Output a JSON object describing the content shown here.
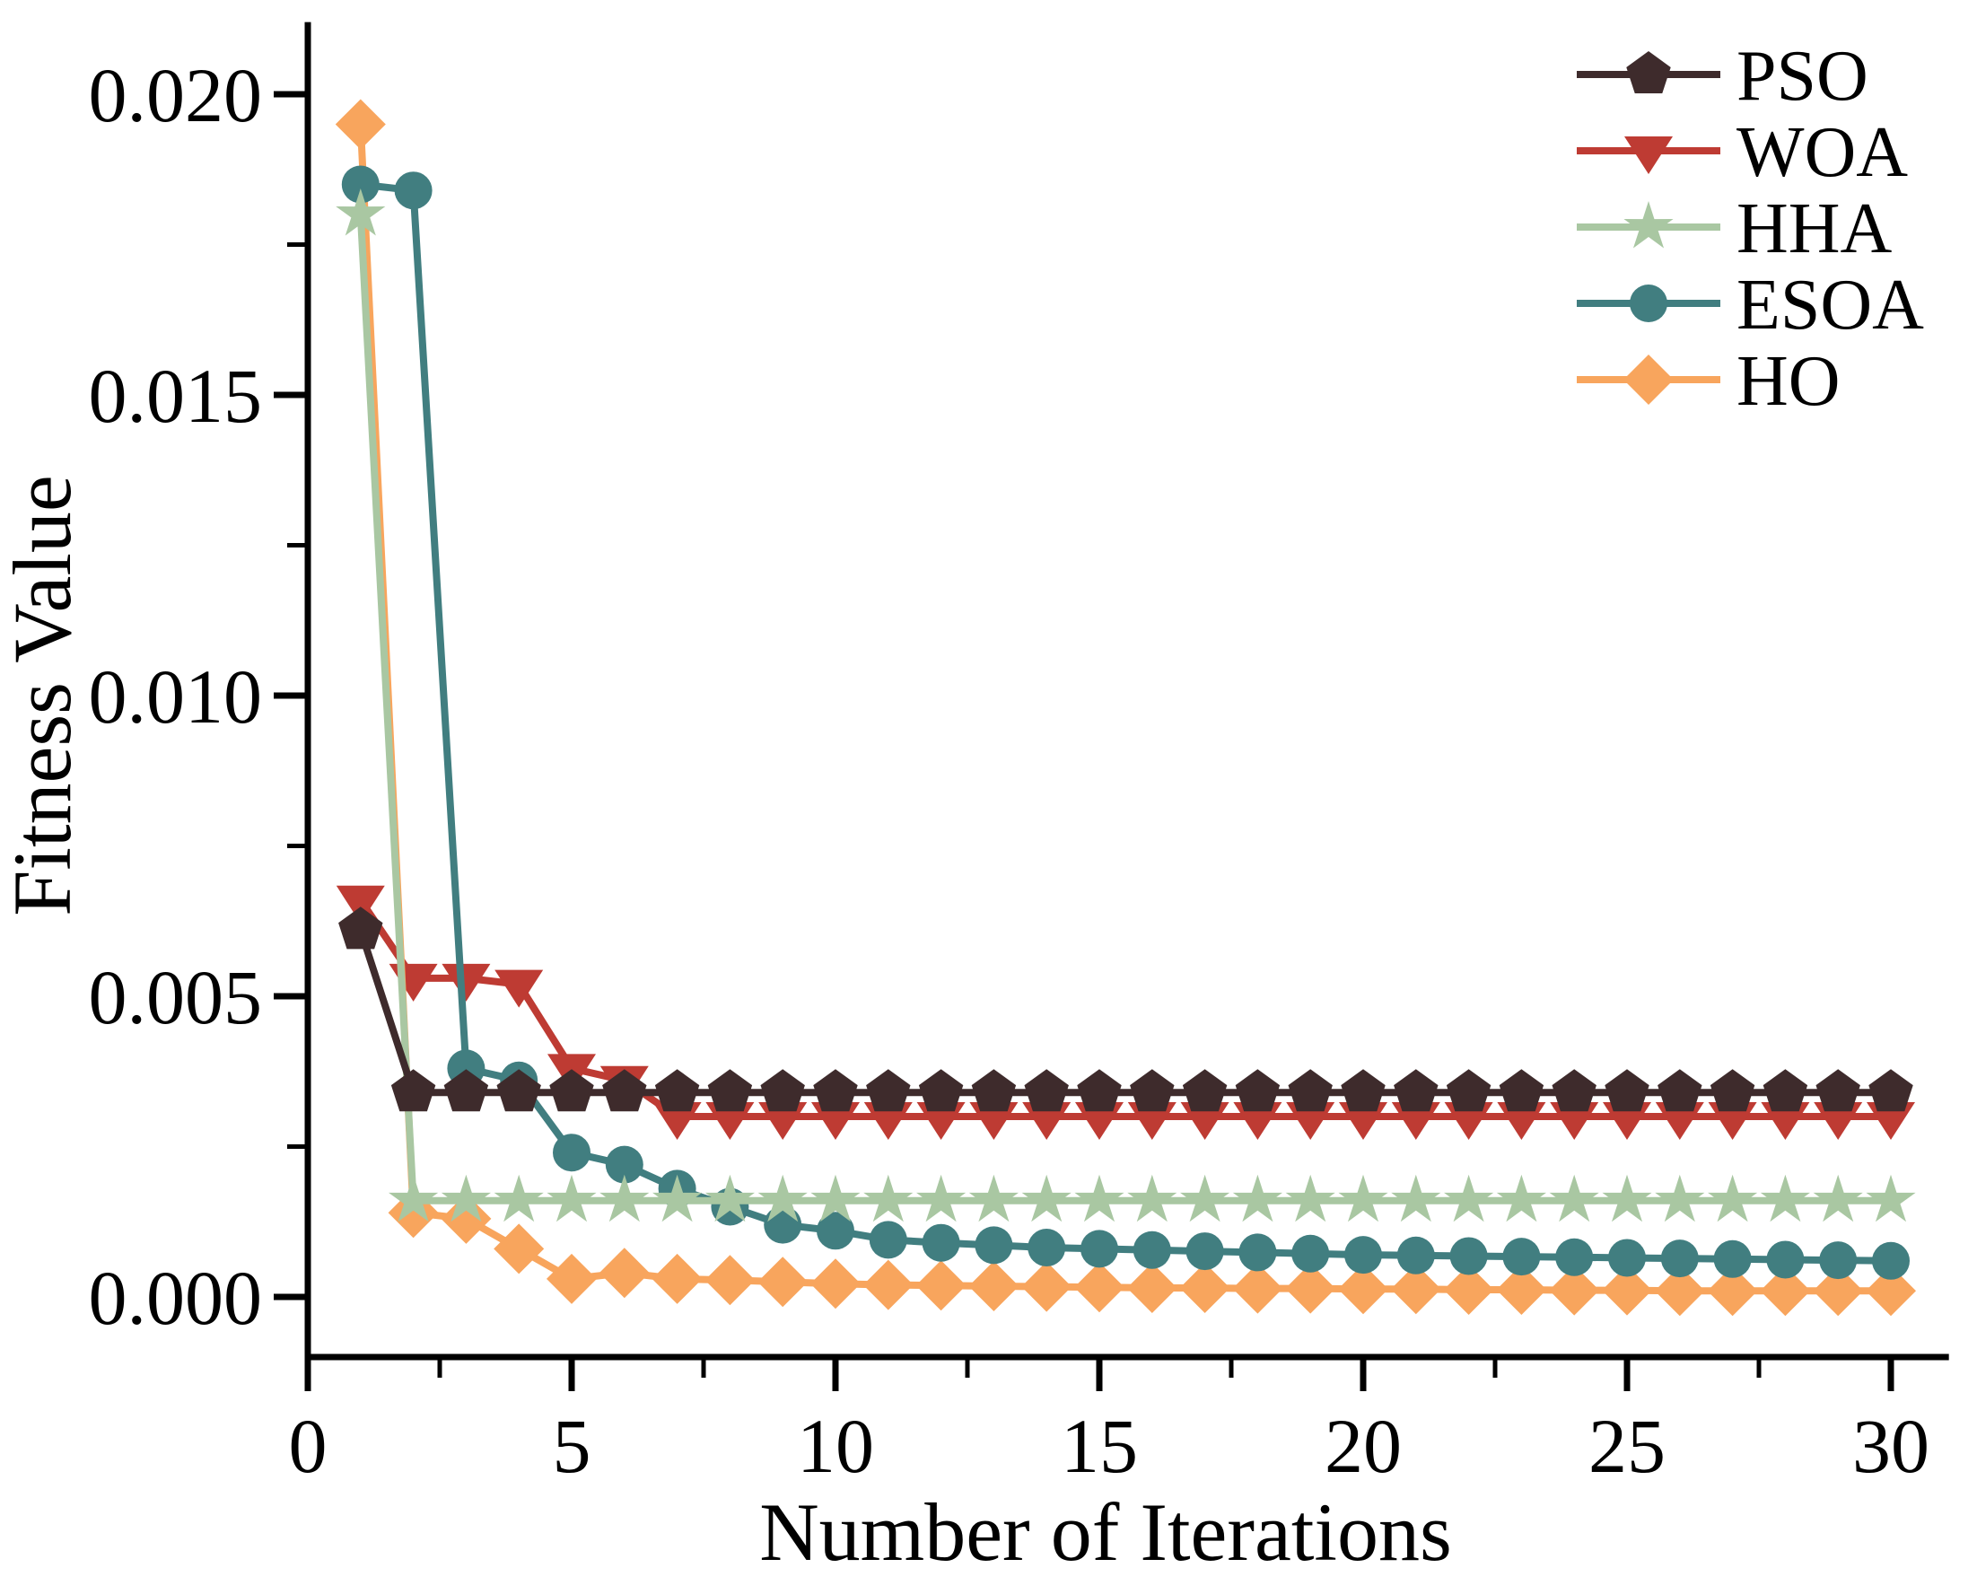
{
  "figure": {
    "background": "#ffffff",
    "axis_color": "#000000"
  },
  "chart_data": {
    "type": "line",
    "title": "",
    "xlabel": "Number of Iterations",
    "ylabel": "Fitness Value",
    "grid": false,
    "legend_position": "top-right",
    "xlim": [
      0,
      31.1
    ],
    "ylim": [
      -0.001,
      0.0212
    ],
    "xticks": [
      0,
      5,
      10,
      15,
      20,
      25,
      30
    ],
    "xticks_minor": [
      2.5,
      7.5,
      12.5,
      17.5,
      22.5,
      27.5
    ],
    "yticks": [
      0.0,
      0.005,
      0.01,
      0.015,
      0.02
    ],
    "yticks_minor": [
      0.0025,
      0.0075,
      0.0125,
      0.0175
    ],
    "ytick_decimals": 3,
    "x": [
      1,
      2,
      3,
      4,
      5,
      6,
      7,
      8,
      9,
      10,
      11,
      12,
      13,
      14,
      15,
      16,
      17,
      18,
      19,
      20,
      21,
      22,
      23,
      24,
      25,
      26,
      27,
      28,
      29,
      30
    ],
    "series": [
      {
        "name": "PSO",
        "color": "#3E2B2C",
        "marker": "pentagon",
        "values": [
          0.0061,
          0.0034,
          0.0034,
          0.0034,
          0.0034,
          0.0034,
          0.0034,
          0.0034,
          0.0034,
          0.0034,
          0.0034,
          0.0034,
          0.0034,
          0.0034,
          0.0034,
          0.0034,
          0.0034,
          0.0034,
          0.0034,
          0.0034,
          0.0034,
          0.0034,
          0.0034,
          0.0034,
          0.0034,
          0.0034,
          0.0034,
          0.0034,
          0.0034,
          0.0034
        ]
      },
      {
        "name": "WOA",
        "color": "#BE3B33",
        "marker": "triangle-down",
        "values": [
          0.0066,
          0.0053,
          0.0053,
          0.0052,
          0.0038,
          0.0036,
          0.003,
          0.003,
          0.003,
          0.003,
          0.003,
          0.003,
          0.003,
          0.003,
          0.003,
          0.003,
          0.003,
          0.003,
          0.003,
          0.003,
          0.003,
          0.003,
          0.003,
          0.003,
          0.003,
          0.003,
          0.003,
          0.003,
          0.003,
          0.003
        ]
      },
      {
        "name": "HHA",
        "color": "#A9C7A2",
        "marker": "star",
        "values": [
          0.018,
          0.0016,
          0.0016,
          0.0016,
          0.0016,
          0.0016,
          0.0016,
          0.0016,
          0.0016,
          0.0016,
          0.0016,
          0.0016,
          0.0016,
          0.0016,
          0.0016,
          0.0016,
          0.0016,
          0.0016,
          0.0016,
          0.0016,
          0.0016,
          0.0016,
          0.0016,
          0.0016,
          0.0016,
          0.0016,
          0.0016,
          0.0016,
          0.0016,
          0.0016
        ]
      },
      {
        "name": "ESOA",
        "color": "#417E80",
        "marker": "circle",
        "values": [
          0.0185,
          0.0184,
          0.0038,
          0.0036,
          0.0024,
          0.0022,
          0.0018,
          0.0015,
          0.0012,
          0.0011,
          0.00095,
          0.0009,
          0.00086,
          0.00082,
          0.0008,
          0.00078,
          0.00076,
          0.00074,
          0.00072,
          0.0007,
          0.00069,
          0.00068,
          0.00067,
          0.00066,
          0.00065,
          0.00064,
          0.00063,
          0.00062,
          0.00061,
          0.0006
        ]
      },
      {
        "name": "HO",
        "color": "#F8A55D",
        "marker": "diamond",
        "values": [
          0.0195,
          0.0014,
          0.0013,
          0.0008,
          0.0003,
          0.0004,
          0.0003,
          0.00028,
          0.00025,
          0.00022,
          0.0002,
          0.00019,
          0.00018,
          0.00017,
          0.00016,
          0.00015,
          0.00015,
          0.00014,
          0.00014,
          0.00013,
          0.00013,
          0.00012,
          0.00012,
          0.00011,
          0.00011,
          0.0001,
          0.0001,
          0.0001,
          0.0001,
          0.0001
        ]
      }
    ],
    "draw_order": [
      "WOA",
      "HO",
      "ESOA",
      "HHA",
      "PSO"
    ]
  }
}
